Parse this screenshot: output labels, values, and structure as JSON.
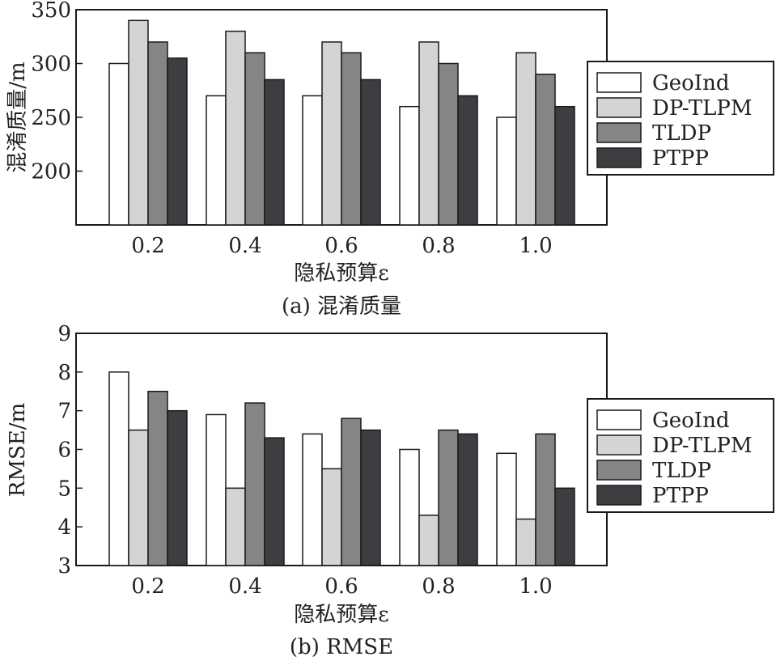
{
  "chart_data": [
    {
      "type": "bar",
      "categories": [
        "0.2",
        "0.4",
        "0.6",
        "0.8",
        "1.0"
      ],
      "series": [
        {
          "name": "GeoInd",
          "values": [
            300,
            270,
            270,
            260,
            250
          ]
        },
        {
          "name": "DP-TLPM",
          "values": [
            340,
            330,
            320,
            320,
            310
          ]
        },
        {
          "name": "TLDP",
          "values": [
            320,
            310,
            310,
            300,
            290
          ]
        },
        {
          "name": "PTPP",
          "values": [
            305,
            285,
            285,
            270,
            260
          ]
        }
      ],
      "xlabel": "隐私预算ε",
      "ylabel": "混淆质量/m",
      "caption": "(a) 混淆质量",
      "ylim": [
        150,
        350
      ],
      "yticks": [
        "200",
        "250",
        "300",
        "350"
      ],
      "grid": false,
      "legend_position": "right"
    },
    {
      "type": "bar",
      "categories": [
        "0.2",
        "0.4",
        "0.6",
        "0.8",
        "1.0"
      ],
      "series": [
        {
          "name": "GeoInd",
          "values": [
            8.0,
            6.9,
            6.4,
            6.0,
            5.9
          ]
        },
        {
          "name": "DP-TLPM",
          "values": [
            6.5,
            5.0,
            5.5,
            4.3,
            4.2
          ]
        },
        {
          "name": "TLDP",
          "values": [
            7.5,
            7.2,
            6.8,
            6.5,
            6.4
          ]
        },
        {
          "name": "PTPP",
          "values": [
            7.0,
            6.3,
            6.5,
            6.4,
            5.0
          ]
        }
      ],
      "xlabel": "隐私预算ε",
      "ylabel": "RMSE/m",
      "caption": "(b) RMSE",
      "ylim": [
        3,
        9
      ],
      "yticks": [
        "3",
        "4",
        "5",
        "6",
        "7",
        "8",
        "9"
      ],
      "grid": false,
      "legend_position": "right"
    }
  ],
  "colors": {
    "GeoInd": "#ffffff",
    "DP-TLPM": "#d4d4d4",
    "TLDP": "#858585",
    "PTPP": "#3e3e42",
    "outline": "#1a1a1a"
  }
}
